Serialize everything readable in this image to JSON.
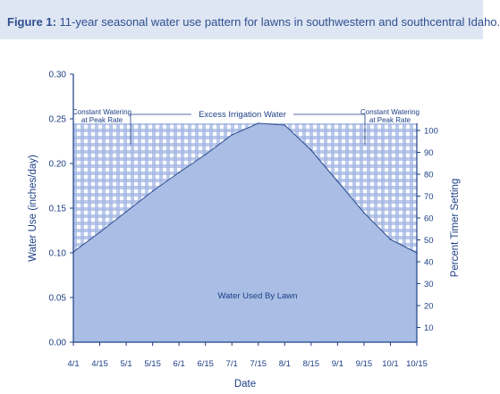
{
  "figure_label": "Figure 1:",
  "figure_caption": "11-year seasonal water use pattern for lawns in southwestern and southcentral Idaho.",
  "colors": {
    "axis": "#1e3f86",
    "fill": "#a9bde5",
    "curve": "#2c4c8e",
    "check_dark": "#a2b6e2",
    "check_light": "#ffffff",
    "title_bg": "#dfe6f3"
  },
  "chart_data": {
    "type": "area",
    "title": "",
    "xlabel": "Date",
    "ylabel": "Water Use (inches/day)",
    "y2label": "Percent Timer Setting",
    "x": [
      "4/1",
      "4/15",
      "5/1",
      "5/15",
      "6/1",
      "6/15",
      "7/1",
      "7/15",
      "8/1",
      "8/15",
      "9/1",
      "9/15",
      "10/1",
      "10/15"
    ],
    "values": [
      0.101,
      0.123,
      0.146,
      0.169,
      0.19,
      0.21,
      0.232,
      0.245,
      0.243,
      0.215,
      0.18,
      0.145,
      0.115,
      0.1
    ],
    "ylim": [
      0,
      0.3
    ],
    "yticks": [
      "0.00",
      "0.05",
      "0.10",
      "0.15",
      "0.20",
      "0.25",
      "0.30"
    ],
    "y2ticks": [
      "10",
      "20",
      "30",
      "40",
      "50",
      "60",
      "70",
      "80",
      "90",
      "100"
    ],
    "y2_max_at_peak": 100,
    "peak_rate": 0.245,
    "grid": false,
    "annotations": {
      "excess": "Excess Irrigation Water",
      "constant_line1": "Constant Watering",
      "constant_line2": "at Peak Rate",
      "used": "Water Used By Lawn"
    }
  }
}
